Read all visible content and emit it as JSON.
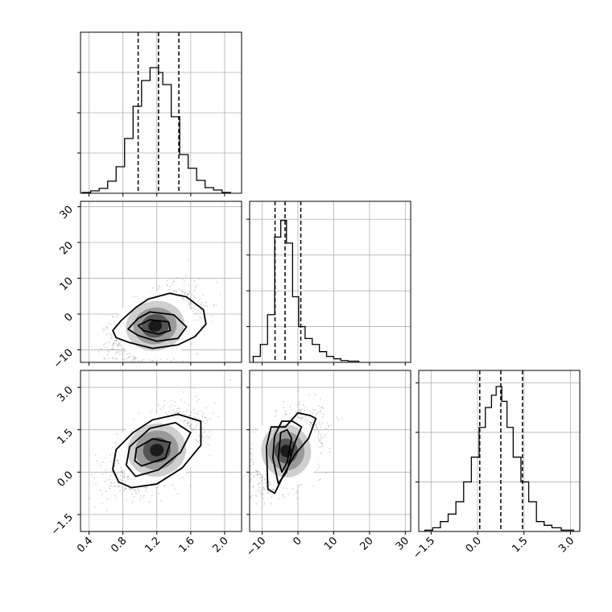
{
  "chart_data": {
    "type": "corner",
    "grid": true,
    "panels": [
      {
        "kind": "hist",
        "row": 0,
        "col": 0,
        "xlim": [
          0.3,
          2.2
        ],
        "ylim": [
          0,
          2.0
        ],
        "bins": [
          [
            0.32,
            0.42,
            0.01
          ],
          [
            0.42,
            0.52,
            0.03
          ],
          [
            0.52,
            0.62,
            0.06
          ],
          [
            0.62,
            0.72,
            0.15
          ],
          [
            0.72,
            0.82,
            0.33
          ],
          [
            0.82,
            0.92,
            0.68
          ],
          [
            0.92,
            1.02,
            1.08
          ],
          [
            1.02,
            1.12,
            1.4
          ],
          [
            1.12,
            1.17,
            1.56
          ],
          [
            1.17,
            1.22,
            1.56
          ],
          [
            1.22,
            1.27,
            1.5
          ],
          [
            1.27,
            1.37,
            1.35
          ],
          [
            1.37,
            1.47,
            0.95
          ],
          [
            1.47,
            1.57,
            0.48
          ],
          [
            1.57,
            1.67,
            0.31
          ],
          [
            1.67,
            1.77,
            0.16
          ],
          [
            1.77,
            1.87,
            0.07
          ],
          [
            1.87,
            1.97,
            0.04
          ],
          [
            1.97,
            2.07,
            0.01
          ]
        ],
        "quantiles": [
          0.98,
          1.22,
          1.46
        ],
        "xticks": [
          0.4,
          0.8,
          1.2,
          1.6,
          2.0
        ],
        "yticks": [
          0.5,
          1.0,
          1.5
        ],
        "show_xlabels": false,
        "show_ylabels": false
      },
      {
        "kind": "scatter",
        "row": 1,
        "col": 0,
        "xlim": [
          0.3,
          2.2
        ],
        "ylim": [
          -13.5,
          31.5
        ],
        "center": [
          1.18,
          -3.3
        ],
        "spread": [
          0.24,
          4.8
        ],
        "rho": 0.45,
        "contours": [
          [
            [
              0.88,
              -8.0
            ],
            [
              1.15,
              -9.6
            ],
            [
              1.45,
              -8.6
            ],
            [
              1.65,
              -6.3
            ],
            [
              1.78,
              -2.8
            ],
            [
              1.75,
              1.2
            ],
            [
              1.55,
              4.8
            ],
            [
              1.35,
              5.8
            ],
            [
              1.1,
              4.2
            ],
            [
              0.95,
              1.8
            ],
            [
              0.78,
              -1.8
            ],
            [
              0.68,
              -4.6
            ],
            [
              0.72,
              -6.6
            ]
          ],
          [
            [
              0.98,
              -6.0
            ],
            [
              1.2,
              -7.6
            ],
            [
              1.45,
              -6.8
            ],
            [
              1.55,
              -3.6
            ],
            [
              1.4,
              -0.2
            ],
            [
              1.12,
              0.6
            ],
            [
              0.98,
              -1.2
            ],
            [
              0.86,
              -4.2
            ]
          ],
          [
            [
              1.04,
              -4.6
            ],
            [
              1.22,
              -5.6
            ],
            [
              1.36,
              -4.6
            ],
            [
              1.34,
              -2.2
            ],
            [
              1.12,
              -1.6
            ],
            [
              0.98,
              -3.2
            ]
          ]
        ],
        "xticks": [
          0.4,
          0.8,
          1.2,
          1.6,
          2.0
        ],
        "yticks": [
          -10,
          0,
          10,
          20,
          30
        ],
        "show_xlabels": false,
        "show_ylabels": true
      },
      {
        "kind": "hist",
        "row": 1,
        "col": 1,
        "xlim": [
          -13.5,
          31.5
        ],
        "ylim": [
          0,
          0.135
        ],
        "bins": [
          [
            -12.5,
            -10.5,
            0.005
          ],
          [
            -10.5,
            -8.5,
            0.015
          ],
          [
            -8.5,
            -6.5,
            0.04
          ],
          [
            -6.5,
            -4.8,
            0.105
          ],
          [
            -4.8,
            -3.2,
            0.119
          ],
          [
            -3.2,
            -1.5,
            0.1
          ],
          [
            -1.5,
            0.2,
            0.055
          ],
          [
            0.2,
            2,
            0.03
          ],
          [
            2,
            4,
            0.02
          ],
          [
            4,
            6,
            0.015
          ],
          [
            6,
            8,
            0.009
          ],
          [
            8,
            10,
            0.005
          ],
          [
            10,
            12,
            0.003
          ],
          [
            12,
            14,
            0.0015
          ],
          [
            14,
            17,
            0.001
          ]
        ],
        "quantiles": [
          -6.4,
          -3.6,
          0.8
        ],
        "xticks": [
          -10,
          0,
          10,
          20,
          30
        ],
        "yticks": [
          0.03,
          0.06,
          0.09,
          0.12
        ],
        "show_xlabels": false,
        "show_ylabels": false
      },
      {
        "kind": "scatter",
        "row": 2,
        "col": 0,
        "xlim": [
          0.3,
          2.2
        ],
        "ylim": [
          -2.1,
          3.6
        ],
        "center": [
          1.2,
          0.78
        ],
        "spread": [
          0.24,
          0.65
        ],
        "rho": 0.55,
        "contours": [
          [
            [
              0.9,
              -0.55
            ],
            [
              1.2,
              -0.42
            ],
            [
              1.5,
              0.15
            ],
            [
              1.72,
              0.95
            ],
            [
              1.72,
              1.8
            ],
            [
              1.45,
              2.05
            ],
            [
              1.15,
              1.85
            ],
            [
              0.92,
              1.4
            ],
            [
              0.72,
              0.8
            ],
            [
              0.68,
              0.1
            ],
            [
              0.75,
              -0.35
            ]
          ],
          [
            [
              0.95,
              -0.15
            ],
            [
              1.22,
              0.08
            ],
            [
              1.48,
              0.7
            ],
            [
              1.6,
              1.4
            ],
            [
              1.42,
              1.75
            ],
            [
              1.12,
              1.55
            ],
            [
              0.88,
              0.9
            ],
            [
              0.84,
              0.25
            ]
          ],
          [
            [
              1.02,
              0.22
            ],
            [
              1.3,
              0.5
            ],
            [
              1.36,
              1.05
            ],
            [
              1.15,
              1.18
            ],
            [
              0.96,
              0.85
            ],
            [
              0.94,
              0.4
            ]
          ]
        ],
        "xticks": [
          0.4,
          0.8,
          1.2,
          1.6,
          2.0
        ],
        "yticks": [
          -1.5,
          0.0,
          1.5,
          3.0
        ],
        "show_xlabels": true,
        "show_ylabels": true
      },
      {
        "kind": "scatter",
        "row": 2,
        "col": 1,
        "xlim": [
          -13.5,
          31.5
        ],
        "ylim": [
          -2.1,
          3.6
        ],
        "center": [
          -3.3,
          0.75
        ],
        "spread": [
          4.8,
          0.65
        ],
        "rho": 0.45,
        "contours": [
          [
            [
              -8.8,
              0.9
            ],
            [
              -8.4,
              -0.6
            ],
            [
              -6.5,
              -0.75
            ],
            [
              -4.0,
              -0.1
            ],
            [
              -1.0,
              0.6
            ],
            [
              3.0,
              1.2
            ],
            [
              5.0,
              1.9
            ],
            [
              3.5,
              2.0
            ],
            [
              0,
              2.1
            ],
            [
              -3.5,
              1.6
            ],
            [
              -7.5,
              1.6
            ]
          ],
          [
            [
              -7.0,
              0.5
            ],
            [
              -5.5,
              -0.4
            ],
            [
              -3.2,
              0.0
            ],
            [
              -1.0,
              1.0
            ],
            [
              1.0,
              1.6
            ],
            [
              -1.5,
              1.8
            ],
            [
              -4.5,
              1.8
            ],
            [
              -6.5,
              1.3
            ]
          ],
          [
            [
              -5.5,
              0.45
            ],
            [
              -4.5,
              0.0
            ],
            [
              -3.0,
              0.35
            ],
            [
              -1.8,
              1.2
            ],
            [
              -3.0,
              1.5
            ],
            [
              -4.8,
              1.4
            ]
          ]
        ],
        "xticks": [
          -10,
          0,
          10,
          20,
          30
        ],
        "yticks": [
          -1.5,
          0.0,
          1.5,
          3.0
        ],
        "show_xlabels": true,
        "show_ylabels": false
      },
      {
        "kind": "hist",
        "row": 2,
        "col": 2,
        "xlim": [
          -1.9,
          3.3
        ],
        "ylim": [
          0,
          0.65
        ],
        "bins": [
          [
            -1.7,
            -1.45,
            0.005
          ],
          [
            -1.45,
            -1.2,
            0.015
          ],
          [
            -1.2,
            -0.95,
            0.04
          ],
          [
            -0.95,
            -0.7,
            0.07
          ],
          [
            -0.7,
            -0.45,
            0.12
          ],
          [
            -0.45,
            -0.2,
            0.2
          ],
          [
            -0.2,
            0.05,
            0.3
          ],
          [
            0.05,
            0.25,
            0.42
          ],
          [
            0.25,
            0.45,
            0.5
          ],
          [
            0.45,
            0.6,
            0.55
          ],
          [
            0.6,
            0.78,
            0.585
          ],
          [
            0.78,
            0.95,
            0.525
          ],
          [
            0.95,
            1.15,
            0.42
          ],
          [
            1.15,
            1.4,
            0.3
          ],
          [
            1.4,
            1.65,
            0.2
          ],
          [
            1.65,
            1.9,
            0.12
          ],
          [
            1.9,
            2.15,
            0.04
          ],
          [
            2.15,
            2.4,
            0.025
          ],
          [
            2.4,
            2.7,
            0.015
          ],
          [
            2.7,
            3.1,
            0.005
          ]
        ],
        "quantiles": [
          0.07,
          0.75,
          1.45
        ],
        "xticks": [
          -1.5,
          0.0,
          1.5,
          3.0
        ],
        "yticks": [
          0.2,
          0.4,
          0.6
        ],
        "show_xlabels": true,
        "show_ylabels": false
      }
    ]
  }
}
